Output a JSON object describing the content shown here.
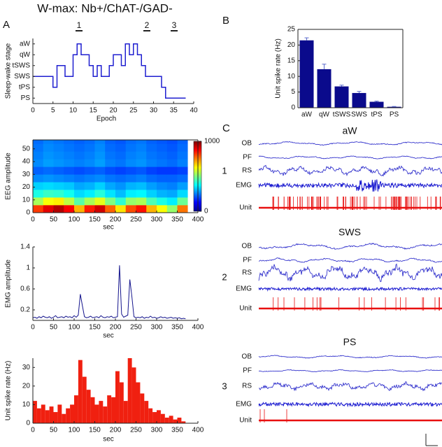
{
  "title": "W-max: Nb+/ChAT-/GAD-",
  "panel_labels": [
    "A",
    "B",
    "C"
  ],
  "chart_data": [
    {
      "type": "step",
      "xlabel": "Epoch",
      "ylabel": "Sleep-wake stage",
      "color": "#1f1fd0",
      "annotations": [
        "1",
        "2",
        "3"
      ],
      "x": [
        0,
        1,
        2,
        3,
        4,
        5,
        6,
        7,
        8,
        9,
        10,
        11,
        12,
        13,
        14,
        15,
        16,
        17,
        18,
        19,
        20,
        21,
        22,
        23,
        24,
        25,
        26,
        27,
        28,
        29,
        30,
        31,
        32,
        33,
        34,
        35,
        36,
        37,
        38
      ],
      "values": [
        2,
        2,
        2,
        2,
        2,
        1,
        3,
        3,
        2,
        2,
        4,
        5,
        4,
        4,
        3,
        2,
        3,
        2,
        2,
        3,
        4,
        4,
        3,
        5,
        4,
        5,
        4,
        3,
        2,
        2,
        2,
        2,
        1,
        0,
        0,
        0,
        0,
        0,
        0
      ],
      "xlim": [
        0,
        40
      ],
      "xticks": [
        0,
        5,
        10,
        15,
        20,
        25,
        30,
        35,
        40
      ],
      "ylim": [
        -0.5,
        5.5
      ],
      "yticks": [
        {
          "value": 0,
          "label": "PS"
        },
        {
          "value": 1,
          "label": "tPS"
        },
        {
          "value": 2,
          "label": "SWS"
        },
        {
          "value": 3,
          "label": "tSWS"
        },
        {
          "value": 4,
          "label": "qW"
        },
        {
          "value": 5,
          "label": "aW"
        }
      ]
    },
    {
      "type": "heatmap",
      "xlabel": "sec",
      "ylabel": "EEG amplitude",
      "colormap": "jet",
      "box": true,
      "x_bins": [
        0,
        25,
        50,
        75,
        100,
        125,
        150,
        175,
        200,
        225,
        250,
        275,
        300,
        325,
        350,
        375
      ],
      "y_bins": [
        0,
        6,
        12,
        18,
        24,
        30,
        36,
        42,
        48,
        54,
        57
      ],
      "values": [
        [
          820,
          900,
          950,
          880,
          700,
          850,
          920,
          780,
          650,
          800,
          860,
          700,
          620,
          520,
          760
        ],
        [
          540,
          620,
          640,
          560,
          460,
          540,
          600,
          500,
          420,
          520,
          540,
          450,
          400,
          360,
          480
        ],
        [
          400,
          430,
          420,
          390,
          340,
          360,
          410,
          350,
          310,
          360,
          370,
          330,
          300,
          290,
          340
        ],
        [
          330,
          340,
          330,
          320,
          290,
          300,
          330,
          290,
          270,
          300,
          310,
          280,
          260,
          250,
          280
        ],
        [
          260,
          270,
          260,
          250,
          240,
          250,
          260,
          240,
          230,
          240,
          250,
          230,
          220,
          220,
          230
        ],
        [
          220,
          230,
          220,
          210,
          200,
          210,
          220,
          200,
          190,
          200,
          210,
          190,
          180,
          180,
          190
        ],
        [
          260,
          280,
          270,
          260,
          250,
          260,
          280,
          250,
          240,
          260,
          270,
          250,
          240,
          230,
          250
        ],
        [
          250,
          270,
          260,
          250,
          240,
          250,
          270,
          240,
          230,
          250,
          260,
          240,
          230,
          220,
          240
        ],
        [
          240,
          260,
          250,
          240,
          230,
          240,
          260,
          230,
          220,
          240,
          250,
          230,
          220,
          210,
          230
        ],
        [
          230,
          250,
          240,
          230,
          220,
          230,
          250,
          220,
          210,
          230,
          240,
          220,
          210,
          200,
          220
        ]
      ],
      "clim": [
        0,
        1000
      ],
      "cticks": [
        0,
        1000
      ],
      "xlim": [
        0,
        400
      ],
      "xticks": [
        0,
        50,
        100,
        150,
        200,
        250,
        300,
        350,
        400
      ],
      "ylim": [
        0,
        57
      ],
      "yticks": [
        0,
        10,
        20,
        30,
        40,
        50
      ]
    },
    {
      "type": "line",
      "xlabel": "sec",
      "ylabel": "EMG amplitude",
      "color": "#14148c",
      "x": [
        0,
        5,
        10,
        15,
        20,
        25,
        30,
        35,
        40,
        45,
        50,
        55,
        60,
        65,
        70,
        75,
        80,
        85,
        90,
        95,
        100,
        105,
        110,
        115,
        120,
        125,
        130,
        135,
        140,
        145,
        150,
        155,
        160,
        165,
        170,
        175,
        180,
        185,
        190,
        195,
        200,
        205,
        210,
        215,
        220,
        225,
        230,
        235,
        240,
        245,
        250,
        255,
        260,
        265,
        270,
        275,
        280,
        285,
        290,
        295,
        300,
        305,
        310,
        315,
        320,
        325,
        330,
        335,
        340,
        345,
        350,
        355,
        360,
        365,
        370
      ],
      "values": [
        0.05,
        0.06,
        0.04,
        0.07,
        0.05,
        0.08,
        0.06,
        0.05,
        0.07,
        0.04,
        0.06,
        0.09,
        0.05,
        0.06,
        0.07,
        0.05,
        0.08,
        0.06,
        0.07,
        0.05,
        0.09,
        0.06,
        0.1,
        0.5,
        0.28,
        0.07,
        0.05,
        0.06,
        0.08,
        0.05,
        0.06,
        0.07,
        0.05,
        0.09,
        0.06,
        0.05,
        0.07,
        0.06,
        0.08,
        0.05,
        0.06,
        0.07,
        1.05,
        0.12,
        0.06,
        0.08,
        0.1,
        0.78,
        0.45,
        0.07,
        0.05,
        0.06,
        0.05,
        0.07,
        0.04,
        0.06,
        0.05,
        0.08,
        0.05,
        0.06,
        0.04,
        0.05,
        0.07,
        0.05,
        0.06,
        0.04,
        0.05,
        0.06,
        0.04,
        0.05,
        0.04,
        0.05,
        0.03,
        0.04,
        0.03
      ],
      "xlim": [
        0,
        400
      ],
      "xticks": [
        0,
        50,
        100,
        150,
        200,
        250,
        300,
        350,
        400
      ],
      "ylim": [
        0,
        1.4
      ],
      "yticks": [
        0.2,
        0.6,
        1.0,
        1.4
      ]
    },
    {
      "type": "histogram",
      "xlabel": "sec",
      "ylabel": "Unit spike rate (Hz)",
      "color": "#f02010",
      "bins": [
        0,
        10,
        20,
        30,
        40,
        50,
        60,
        70,
        80,
        90,
        100,
        110,
        120,
        130,
        140,
        150,
        160,
        170,
        180,
        190,
        200,
        210,
        220,
        230,
        240,
        250,
        260,
        270,
        280,
        290,
        300,
        310,
        320,
        330,
        340,
        350,
        360,
        370
      ],
      "values": [
        12,
        8,
        10,
        7,
        9,
        6,
        10,
        5,
        8,
        10,
        15,
        34,
        25,
        18,
        14,
        10,
        12,
        9,
        15,
        14,
        28,
        22,
        12,
        35,
        30,
        22,
        16,
        12,
        8,
        6,
        7,
        5,
        3,
        4,
        2,
        3,
        1
      ],
      "xlim": [
        0,
        400
      ],
      "xticks": [
        0,
        50,
        100,
        150,
        200,
        250,
        300,
        350,
        400
      ],
      "ylim": [
        0,
        35
      ],
      "yticks": [
        0,
        10,
        20,
        30
      ]
    },
    {
      "type": "bar",
      "ylabel": "Unit spike rate (Hz)",
      "color": "#0a0a8c",
      "box": true,
      "categories": [
        "aW",
        "qW",
        "tSWS",
        "SWS",
        "tPS",
        "PS"
      ],
      "values": [
        21.5,
        12.3,
        6.8,
        4.7,
        1.9,
        0.3
      ],
      "errors": [
        0.8,
        1.6,
        0.4,
        0.5,
        0.2,
        0.1
      ],
      "ylim": [
        0,
        25
      ],
      "yticks": [
        0,
        5,
        10,
        15,
        20,
        25
      ]
    }
  ],
  "traces": {
    "groups": [
      {
        "number": "1",
        "title": "aW",
        "channels": [
          "OB",
          "PF",
          "RS",
          "EMG",
          "Unit"
        ]
      },
      {
        "number": "2",
        "title": "SWS",
        "channels": [
          "OB",
          "PF",
          "RS",
          "EMG",
          "Unit"
        ]
      },
      {
        "number": "3",
        "title": "PS",
        "channels": [
          "OB",
          "PF",
          "RS",
          "EMG",
          "Unit"
        ]
      }
    ]
  }
}
